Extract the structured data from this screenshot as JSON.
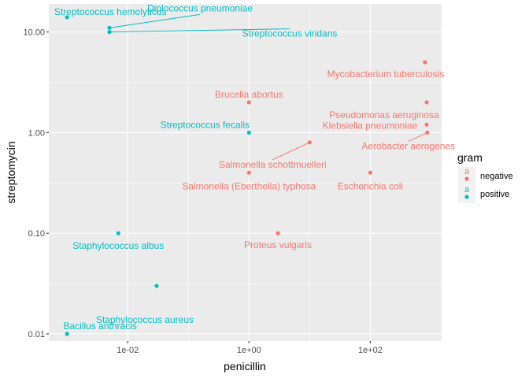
{
  "chart_data": {
    "type": "scatter",
    "xlabel": "penicillin",
    "ylabel": "streptomycin",
    "x_scale": "log10",
    "y_scale": "log10",
    "xlim": [
      0.0005,
      1500
    ],
    "ylim": [
      0.0085,
      19
    ],
    "x_ticks": [
      {
        "value": 0.01,
        "label": "1e-02"
      },
      {
        "value": 1,
        "label": "1e+00"
      },
      {
        "value": 100,
        "label": "1e+02"
      }
    ],
    "y_ticks": [
      {
        "value": 0.01,
        "label": "0.01"
      },
      {
        "value": 0.1,
        "label": "0.10"
      },
      {
        "value": 1,
        "label": "1.00"
      },
      {
        "value": 10,
        "label": "10.00"
      }
    ],
    "grid": true,
    "legend": {
      "title": "gram",
      "position": "right",
      "key_glyph": "a",
      "entries": [
        {
          "name": "negative",
          "color": "#F8766D"
        },
        {
          "name": "positive",
          "color": "#00BFC4"
        }
      ]
    },
    "colors": {
      "negative": "#F8766D",
      "positive": "#00BFC4",
      "panel": "#EBEBEB",
      "grid": "#FFFFFF"
    },
    "points": [
      {
        "label": "Aerobacter aerogenes",
        "x": 870,
        "y": 1,
        "gram": "negative"
      },
      {
        "label": "Brucella abortus",
        "x": 1,
        "y": 2,
        "gram": "negative"
      },
      {
        "label": "Bacillus anthracis",
        "x": 0.001,
        "y": 0.01,
        "gram": "positive"
      },
      {
        "label": "Diplococcus pneumoniae",
        "x": 0.005,
        "y": 11,
        "gram": "positive"
      },
      {
        "label": "Escherichia coli",
        "x": 100,
        "y": 0.4,
        "gram": "negative"
      },
      {
        "label": "Klebsiella pneumoniae",
        "x": 850,
        "y": 1.2,
        "gram": "negative"
      },
      {
        "label": "Mycobacterium tuberculosis",
        "x": 800,
        "y": 5,
        "gram": "negative"
      },
      {
        "label": "Proteus vulgaris",
        "x": 3,
        "y": 0.1,
        "gram": "negative"
      },
      {
        "label": "Pseudomonas aeruginosa",
        "x": 850,
        "y": 2,
        "gram": "negative"
      },
      {
        "label": "Salmonella (Eberthella) typhosa",
        "x": 1,
        "y": 0.4,
        "gram": "negative"
      },
      {
        "label": "Salmonella schottmuelleri",
        "x": 10,
        "y": 0.8,
        "gram": "negative"
      },
      {
        "label": "Staphylococcus albus",
        "x": 0.007,
        "y": 0.1,
        "gram": "positive"
      },
      {
        "label": "Staphylococcus aureus",
        "x": 0.03,
        "y": 0.03,
        "gram": "positive"
      },
      {
        "label": "Streptococcus fecalis",
        "x": 1,
        "y": 1,
        "gram": "positive"
      },
      {
        "label": "Streptococcus hemolyticus",
        "x": 0.001,
        "y": 14,
        "gram": "positive"
      },
      {
        "label": "Streptococcus viridans",
        "x": 0.005,
        "y": 10,
        "gram": "positive"
      }
    ]
  }
}
